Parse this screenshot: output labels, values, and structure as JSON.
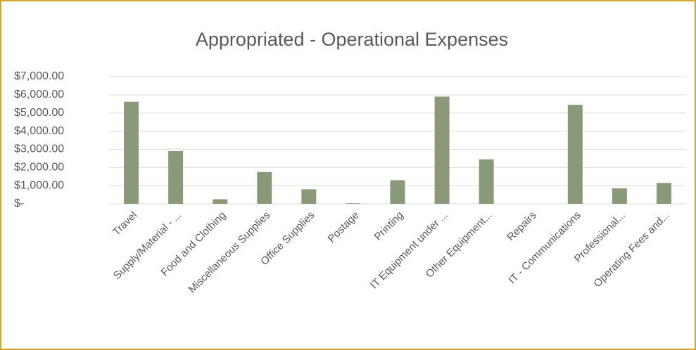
{
  "chart_data": {
    "type": "bar",
    "title": "Appropriated - Operational Expenses",
    "categories": [
      "Travel",
      "Supply/Material - ...",
      "Food and Clothing",
      "Miscellaneous Supplies",
      "Office Supplies",
      "Postage",
      "Printing",
      "IT Equipment under ...",
      "Other Equipment...",
      "Repairs",
      "IT - Communications",
      "Professional...",
      "Operating Fees and..."
    ],
    "values": [
      5620,
      2900,
      250,
      1750,
      800,
      30,
      1300,
      5900,
      2450,
      0,
      5450,
      850,
      1150
    ],
    "color": "#8a9a78",
    "ylim": [
      0,
      7000
    ],
    "yticks": [
      {
        "value": 0,
        "label": "$-"
      },
      {
        "value": 1000,
        "label": "$1,000.00"
      },
      {
        "value": 2000,
        "label": "$2,000.00"
      },
      {
        "value": 3000,
        "label": "$3,000.00"
      },
      {
        "value": 4000,
        "label": "$4,000.00"
      },
      {
        "value": 5000,
        "label": "$5,000.00"
      },
      {
        "value": 6000,
        "label": "$6,000.00"
      },
      {
        "value": 7000,
        "label": "$7,000.00"
      }
    ],
    "grid": true
  }
}
